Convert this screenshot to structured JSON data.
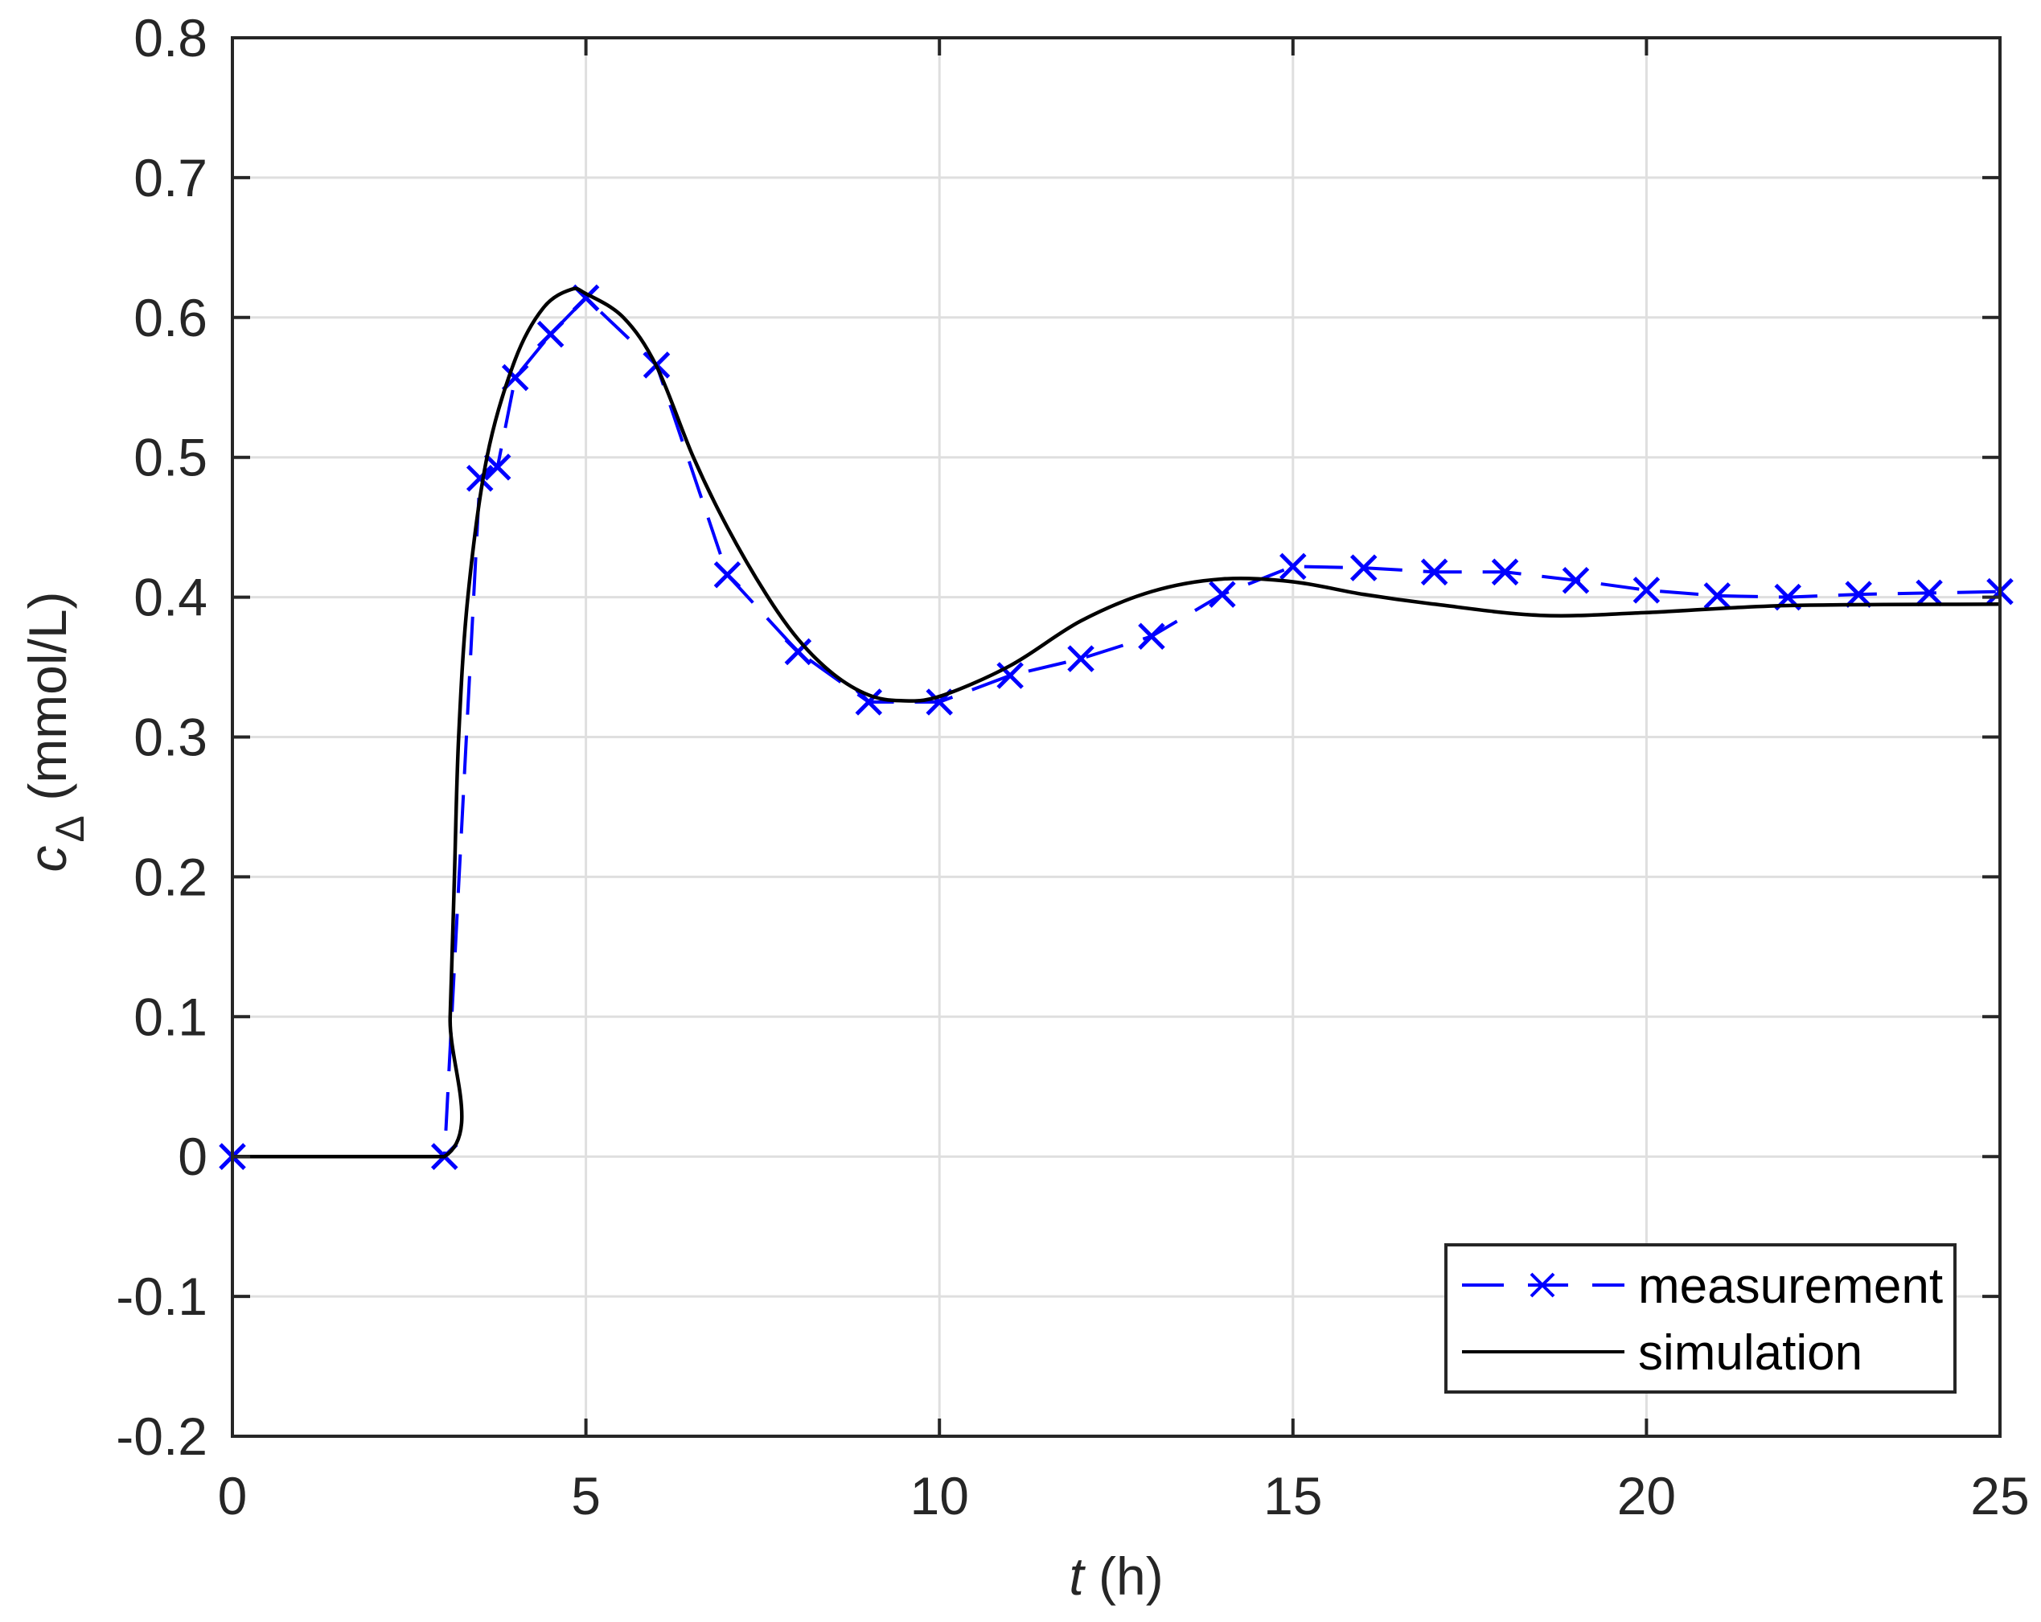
{
  "chart_data": {
    "type": "line",
    "title": "",
    "xlabel": "t (h)",
    "xlabel_parts": {
      "var": "t",
      "unit": " (h)"
    },
    "ylabel": "c_Δ (mmol/L)",
    "ylabel_parts": {
      "var": "c",
      "sub": "Δ",
      "unit": " (mmol/L)"
    },
    "xlim": [
      0,
      25
    ],
    "ylim": [
      -0.2,
      0.8
    ],
    "xticks": [
      0,
      5,
      10,
      15,
      20,
      25
    ],
    "xtick_labels": [
      "0",
      "5",
      "10",
      "15",
      "20",
      "25"
    ],
    "yticks": [
      -0.2,
      -0.1,
      0,
      0.1,
      0.2,
      0.3,
      0.4,
      0.5,
      0.6,
      0.7,
      0.8
    ],
    "ytick_labels": [
      "-0.2",
      "-0.1",
      "0",
      "0.1",
      "0.2",
      "0.3",
      "0.4",
      "0.5",
      "0.6",
      "0.7",
      "0.8"
    ],
    "grid": true,
    "legend_position": "lower right",
    "series": [
      {
        "name": "measurement",
        "color": "#0000ff",
        "line_style": "dashed",
        "marker": "x",
        "x": [
          0,
          3,
          3.5,
          3.75,
          4,
          4.5,
          5,
          6,
          7,
          8,
          9,
          10,
          11,
          12,
          13,
          14,
          15,
          16,
          17,
          18,
          19,
          20,
          21,
          22,
          23,
          24,
          25
        ],
        "y": [
          0,
          0,
          0.485,
          0.493,
          0.557,
          0.588,
          0.614,
          0.566,
          0.416,
          0.361,
          0.325,
          0.325,
          0.344,
          0.356,
          0.372,
          0.402,
          0.422,
          0.421,
          0.418,
          0.418,
          0.412,
          0.405,
          0.401,
          0.4,
          0.402,
          0.403,
          0.404
        ]
      },
      {
        "name": "simulation",
        "color": "#000000",
        "line_style": "solid",
        "marker": "none",
        "x": [
          0,
          3,
          3.08,
          3.14,
          3.2,
          3.33,
          3.6,
          4.0,
          4.4,
          4.79,
          5.0,
          5.53,
          6.0,
          6.52,
          7.0,
          7.55,
          8.0,
          8.5,
          9.0,
          9.45,
          10,
          11,
          12,
          13,
          14,
          15,
          16,
          17,
          18.5,
          20,
          22,
          25
        ],
        "y": [
          0,
          0,
          0.1,
          0.2,
          0.3,
          0.4,
          0.5,
          0.57,
          0.607,
          0.62,
          0.617,
          0.6,
          0.565,
          0.5,
          0.45,
          0.402,
          0.37,
          0.345,
          0.33,
          0.326,
          0.329,
          0.351,
          0.383,
          0.404,
          0.413,
          0.411,
          0.402,
          0.395,
          0.387,
          0.389,
          0.394,
          0.395
        ]
      }
    ]
  },
  "legend": {
    "items": [
      {
        "label": "measurement",
        "color": "#0000ff",
        "style": "dashed-x"
      },
      {
        "label": "simulation",
        "color": "#000000",
        "style": "solid"
      }
    ]
  },
  "colors": {
    "axis": "#262626",
    "grid": "#dfdfdf",
    "measurement": "#0000ff",
    "simulation": "#000000"
  }
}
